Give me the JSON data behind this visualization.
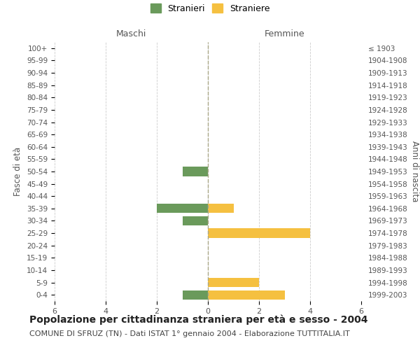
{
  "age_groups": [
    "100+",
    "95-99",
    "90-94",
    "85-89",
    "80-84",
    "75-79",
    "70-74",
    "65-69",
    "60-64",
    "55-59",
    "50-54",
    "45-49",
    "40-44",
    "35-39",
    "30-34",
    "25-29",
    "20-24",
    "15-19",
    "10-14",
    "5-9",
    "0-4"
  ],
  "birth_years": [
    "≤ 1903",
    "1904-1908",
    "1909-1913",
    "1914-1918",
    "1919-1923",
    "1924-1928",
    "1929-1933",
    "1934-1938",
    "1939-1943",
    "1944-1948",
    "1949-1953",
    "1954-1958",
    "1959-1963",
    "1964-1968",
    "1969-1973",
    "1974-1978",
    "1979-1983",
    "1984-1988",
    "1989-1993",
    "1994-1998",
    "1999-2003"
  ],
  "males": [
    0,
    0,
    0,
    0,
    0,
    0,
    0,
    0,
    0,
    0,
    1,
    0,
    0,
    2,
    1,
    0,
    0,
    0,
    0,
    0,
    1
  ],
  "females": [
    0,
    0,
    0,
    0,
    0,
    0,
    0,
    0,
    0,
    0,
    0,
    0,
    0,
    1,
    0,
    4,
    0,
    0,
    0,
    2,
    3
  ],
  "male_color": "#6a9a5b",
  "female_color": "#f5c040",
  "xlim": 6,
  "xlabel_left": "Maschi",
  "xlabel_right": "Femmine",
  "ylabel_left": "Fasce di età",
  "ylabel_right": "Anni di nascita",
  "legend_stranieri": "Stranieri",
  "legend_straniere": "Straniere",
  "title": "Popolazione per cittadinanza straniera per età e sesso - 2004",
  "subtitle": "COMUNE DI SFRUZ (TN) - Dati ISTAT 1° gennaio 2004 - Elaborazione TUTTITALIA.IT",
  "title_fontsize": 10,
  "subtitle_fontsize": 8,
  "background_color": "#ffffff",
  "grid_color": "#cccccc",
  "bar_height": 0.75
}
